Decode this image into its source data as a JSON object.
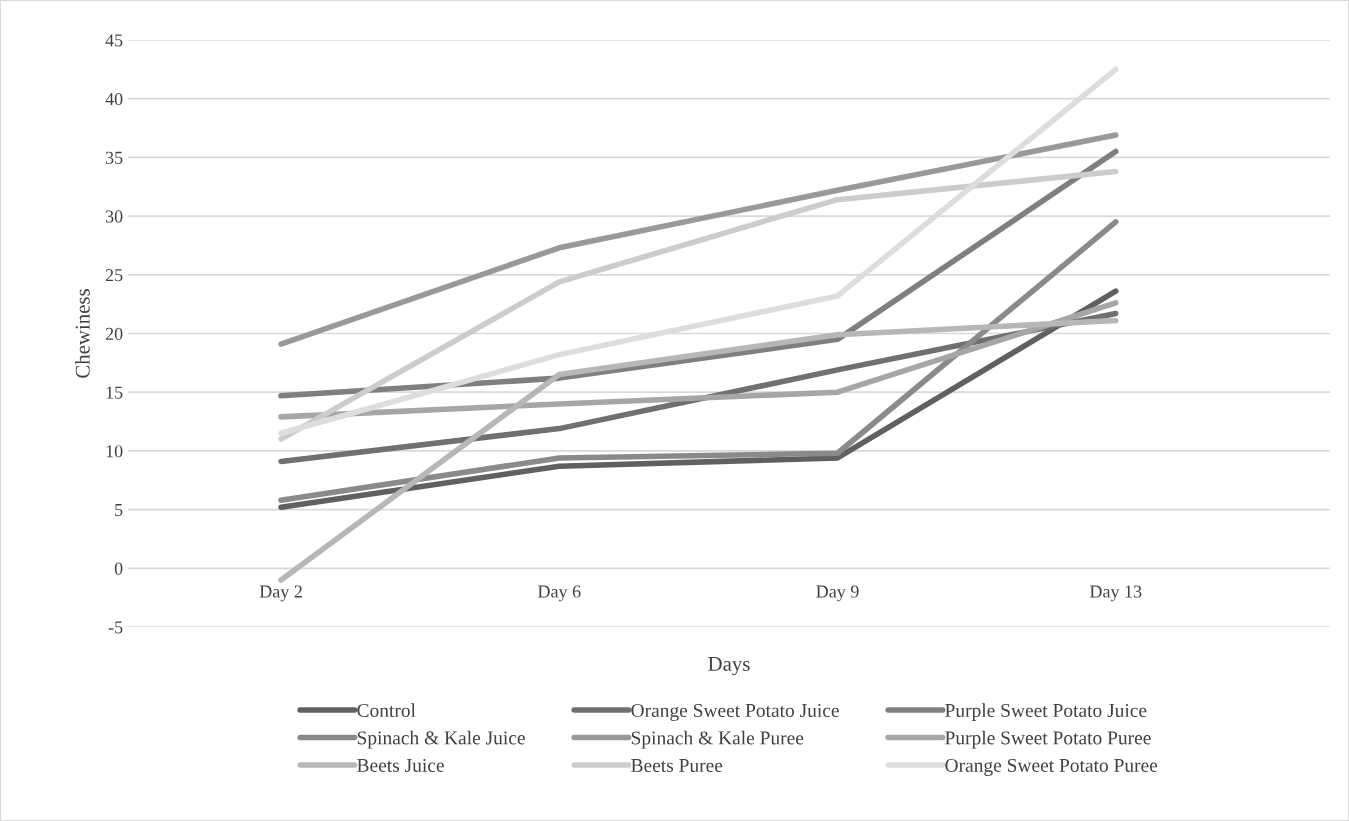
{
  "chart_data": {
    "type": "line",
    "xlabel": "Days",
    "ylabel": "Chewiness",
    "categories": [
      "Day 2",
      "Day 6",
      "Day 9",
      "Day 13"
    ],
    "series": [
      {
        "name": "Control",
        "color": "#606060",
        "values": [
          5.2,
          8.7,
          9.4,
          23.6
        ]
      },
      {
        "name": "Orange Sweet Potato Juice",
        "color": "#707070",
        "values": [
          9.1,
          11.9,
          16.9,
          21.7
        ]
      },
      {
        "name": "Purple Sweet Potato Juice",
        "color": "#7f7f7f",
        "values": [
          14.7,
          16.2,
          19.5,
          35.5
        ]
      },
      {
        "name": "Spinach & Kale Juice",
        "color": "#8a8a8a",
        "values": [
          5.8,
          9.4,
          9.8,
          29.5
        ]
      },
      {
        "name": "Spinach & Kale Puree",
        "color": "#999999",
        "values": [
          19.1,
          27.3,
          32.2,
          36.9
        ]
      },
      {
        "name": "Purple Sweet Potato Puree",
        "color": "#a6a6a6",
        "values": [
          12.9,
          14.0,
          15.0,
          22.6
        ]
      },
      {
        "name": "Beets Juice",
        "color": "#b7b7b7",
        "values": [
          -1.0,
          16.5,
          19.9,
          21.1
        ]
      },
      {
        "name": "Beets Puree",
        "color": "#cccccc",
        "values": [
          11.0,
          24.4,
          31.4,
          33.8
        ]
      },
      {
        "name": "Orange Sweet Potato Puree",
        "color": "#dddddd",
        "values": [
          11.5,
          18.2,
          23.2,
          42.5
        ]
      }
    ],
    "ylim": [
      -5,
      45
    ],
    "yticks": [
      -5,
      0,
      5,
      10,
      15,
      20,
      25,
      30,
      35,
      40,
      45
    ],
    "grid": "y",
    "legend": "bottom",
    "marker": "none",
    "line_style": "solid"
  }
}
